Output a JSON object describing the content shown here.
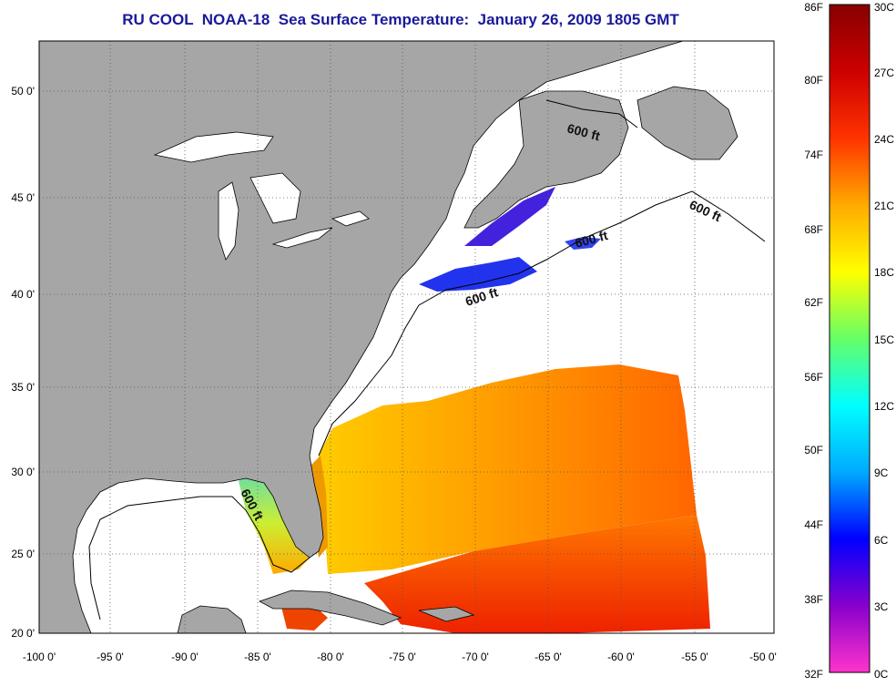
{
  "title": "RU COOL  NOAA-18  Sea Surface Temperature:  January 26, 2009 1805 GMT",
  "map": {
    "lon_labels": [
      "-100 0'",
      "-95 0'",
      "-90 0'",
      "-85 0'",
      "-80 0'",
      "-75 0'",
      "-70 0'",
      "-65 0'",
      "-60 0'",
      "-55 0'",
      "-50 0'"
    ],
    "lat_labels": [
      "50 0'",
      "45 0'",
      "40 0'",
      "35 0'",
      "30 0'",
      "25 0'",
      "20 0'"
    ],
    "contour_labels": [
      "600 ft",
      "600 ft",
      "600 ft",
      "600 ft",
      "600 ft"
    ],
    "colors": {
      "land": "#a6a6a6",
      "water_no_data": "#ffffff",
      "grid": "#555555"
    }
  },
  "colorbar": {
    "f_labels": [
      "86F",
      "80F",
      "74F",
      "68F",
      "62F",
      "56F",
      "50F",
      "44F",
      "38F",
      "32F"
    ],
    "c_labels": [
      "30C",
      "27C",
      "24C",
      "21C",
      "18C",
      "15C",
      "12C",
      "9C",
      "6C",
      "3C",
      "0C"
    ],
    "stops": [
      "#ff33cc",
      "#8800cc",
      "#0000ff",
      "#00aaff",
      "#00ffff",
      "#66ff66",
      "#ffff00",
      "#ffaa00",
      "#ff3300",
      "#cc0000",
      "#880000"
    ]
  }
}
